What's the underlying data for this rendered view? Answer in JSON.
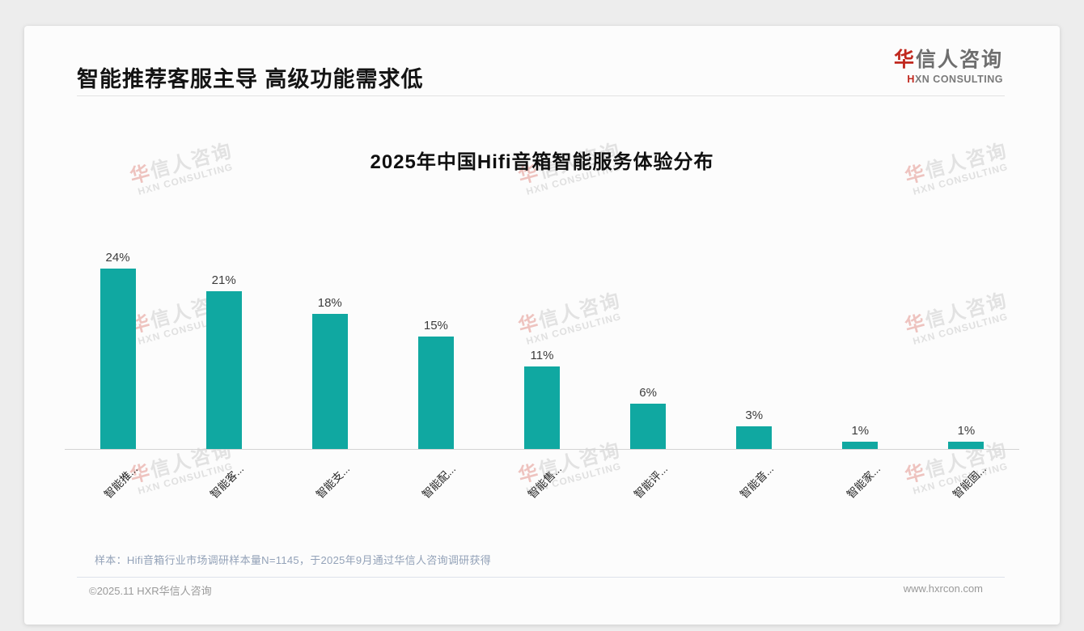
{
  "header": {
    "title": "智能推荐客服主导 高级功能需求低",
    "logo": {
      "zh_highlight": "华",
      "zh_rest": "信人咨询",
      "en_highlight": "H",
      "en_rest": "XN CONSULTING"
    }
  },
  "chart_data": {
    "type": "bar",
    "title": "2025年中国Hifi音箱智能服务体验分布",
    "categories": [
      "智能推...",
      "智能客...",
      "智能支...",
      "智能配...",
      "智能售...",
      "智能评...",
      "智能音...",
      "智能家...",
      "智能固..."
    ],
    "values": [
      24,
      21,
      18,
      15,
      11,
      6,
      3,
      1,
      1
    ],
    "data_labels": [
      "24%",
      "21%",
      "18%",
      "15%",
      "11%",
      "6%",
      "3%",
      "1%",
      "1%"
    ],
    "unit": "%",
    "bar_color": "#10a8a1",
    "ylim": [
      0,
      26
    ],
    "xlabel": "",
    "ylabel": "",
    "grid": false,
    "legend_position": "none",
    "x_label_rotation": 45
  },
  "note": {
    "text": "样本：Hifi音箱行业市场调研样本量N=1145，于2025年9月通过华信人咨询调研获得"
  },
  "footer": {
    "copyright": "©2025.11 HXR华信人咨询",
    "website": "www.hxrcon.com"
  },
  "watermark": {
    "zh_highlight": "华",
    "zh_rest": "信人咨询",
    "en": "HXN CONSULTING"
  }
}
